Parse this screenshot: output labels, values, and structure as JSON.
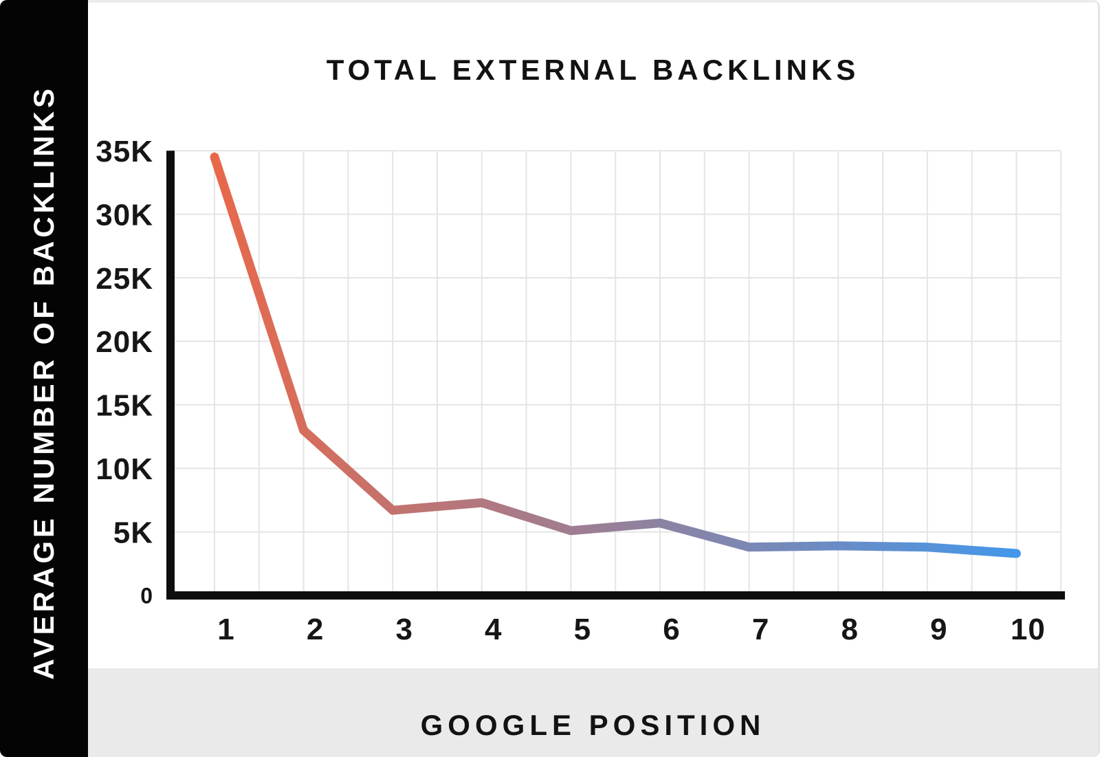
{
  "card": {
    "title": "TOTAL EXTERNAL BACKLINKS",
    "y_axis_title": "AVERAGE NUMBER OF BACKLINKS",
    "x_axis_title": "GOOGLE POSITION"
  },
  "chart_data": {
    "type": "line",
    "title": "TOTAL EXTERNAL BACKLINKS",
    "xlabel": "GOOGLE POSITION",
    "ylabel": "AVERAGE NUMBER OF BACKLINKS",
    "x": [
      1,
      2,
      3,
      4,
      5,
      6,
      7,
      8,
      9,
      10
    ],
    "values": [
      34500,
      13000,
      6700,
      7300,
      5100,
      5700,
      3800,
      3900,
      3800,
      3300
    ],
    "x_tick_labels": [
      "1",
      "2",
      "3",
      "4",
      "5",
      "6",
      "7",
      "8",
      "9",
      "10"
    ],
    "y_tick_labels": [
      "35K",
      "30K",
      "25K",
      "20K",
      "15K",
      "10K",
      "5K",
      "0"
    ],
    "y_tick_values": [
      35000,
      30000,
      25000,
      20000,
      15000,
      10000,
      5000,
      0
    ],
    "ylim": [
      0,
      35000
    ],
    "grid": true,
    "minor_vertical_gridlines_every": 0.5,
    "legend": "none",
    "colors": {
      "line_gradient_start": "#E8684A",
      "line_gradient_end": "#4497EA",
      "grid": "#e4e4e4",
      "axis": "#0e0e0e",
      "tick_text": "#161616",
      "sidebar_bg": "#040404",
      "sidebar_text": "#ffffff",
      "footer_bg": "#eaeaea",
      "title_text": "#121212"
    }
  }
}
